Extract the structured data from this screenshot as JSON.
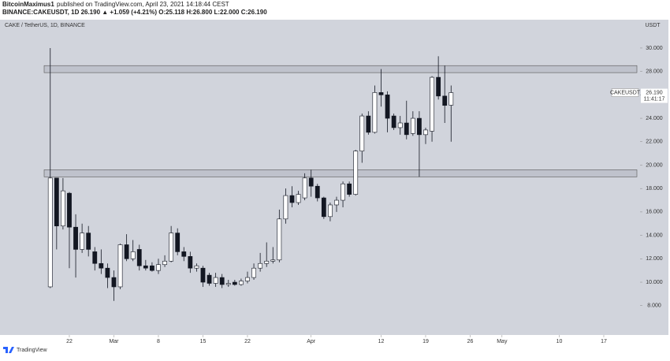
{
  "header": {
    "author": "BitcoinMaximus1",
    "published": "published on TradingView.com, April 23, 2021 14:18:44 CEST",
    "quote": "BINANCE:CAKEUSDT, 1D 26.190 ▲ +1.059 (+4.21%) O:25.118 H:26.800 L:22.000 C:26.190"
  },
  "footer": {
    "brand": "TradingView"
  },
  "chart_data": {
    "type": "candlestick",
    "title": "CAKE / TetherUS, 1D, BINANCE",
    "symbol_tag": "CAKEUSDT",
    "last_price_label": "26.190",
    "countdown": "11:41:17",
    "unit": "USDT",
    "x": [
      0,
      1,
      2,
      3,
      4,
      5,
      6,
      7,
      8,
      9,
      10,
      11,
      12,
      13,
      14,
      15,
      16,
      17,
      18,
      19,
      20,
      21,
      22,
      23,
      24,
      25,
      26,
      27,
      28,
      29,
      30,
      31,
      32,
      33,
      34,
      35,
      36,
      37,
      38,
      39,
      40,
      41,
      42,
      43,
      44,
      45,
      46,
      47,
      48,
      49,
      50,
      51,
      52,
      53,
      54,
      55,
      56,
      57,
      58,
      59,
      60,
      61,
      62,
      63
    ],
    "open": [
      9.6,
      18.9,
      14.8,
      17.6,
      14.7,
      12.8,
      14.2,
      12.6,
      11.6,
      11.2,
      10.4,
      9.6,
      13.2,
      12.0,
      12.8,
      11.4,
      11.4,
      11.0,
      11.5,
      11.8,
      14.2,
      12.6,
      12.2,
      11.2,
      11.2,
      10.6,
      9.9,
      10.4,
      9.8,
      10.0,
      9.8,
      10.1,
      10.4,
      11.2,
      11.6,
      11.8,
      11.9,
      15.4,
      17.4,
      16.8,
      17.2,
      18.9,
      18.2,
      17.2,
      15.6,
      16.6,
      17.0,
      18.4,
      17.5,
      21.2,
      24.2,
      22.8,
      26.2,
      26.0,
      24.2,
      23.2,
      23.6,
      22.7,
      24.0,
      22.6,
      22.9,
      27.5,
      25.9,
      25.118
    ],
    "high": [
      30.0,
      18.9,
      18.9,
      17.7,
      15.8,
      15.0,
      14.8,
      13.0,
      12.8,
      11.6,
      11.0,
      13.3,
      14.1,
      13.6,
      13.2,
      11.9,
      11.7,
      12.0,
      12.3,
      14.8,
      14.6,
      13.0,
      12.6,
      11.6,
      11.4,
      10.8,
      10.8,
      10.7,
      10.2,
      10.2,
      10.3,
      10.9,
      11.6,
      12.5,
      13.4,
      13.0,
      16.2,
      18.0,
      18.2,
      17.8,
      19.3,
      19.6,
      18.4,
      17.3,
      16.8,
      17.3,
      18.6,
      18.6,
      21.3,
      24.4,
      24.6,
      26.8,
      28.2,
      26.3,
      24.4,
      24.2,
      25.5,
      24.6,
      24.6,
      23.2,
      27.6,
      29.3,
      28.5,
      26.8
    ],
    "low": [
      9.5,
      12.8,
      14.5,
      11.2,
      10.4,
      12.5,
      12.2,
      11.0,
      10.7,
      9.5,
      8.4,
      9.4,
      11.8,
      11.8,
      11.0,
      11.0,
      10.9,
      10.7,
      11.3,
      11.7,
      12.3,
      11.8,
      10.8,
      10.9,
      9.6,
      9.7,
      9.6,
      9.5,
      9.6,
      9.7,
      9.7,
      9.9,
      10.2,
      10.9,
      11.3,
      11.6,
      11.7,
      15.0,
      16.4,
      16.6,
      17.0,
      17.3,
      16.9,
      15.4,
      15.2,
      16.0,
      16.4,
      17.3,
      17.4,
      20.2,
      22.6,
      22.7,
      25.0,
      22.8,
      23.0,
      22.6,
      22.2,
      22.5,
      19.0,
      21.8,
      22.0,
      25.6,
      23.6,
      22.0
    ],
    "close": [
      18.9,
      14.8,
      17.8,
      14.7,
      12.8,
      14.2,
      12.8,
      11.6,
      11.2,
      10.4,
      9.6,
      13.2,
      12.0,
      12.6,
      11.4,
      11.2,
      11.0,
      11.5,
      11.8,
      14.2,
      12.6,
      12.2,
      11.2,
      11.4,
      10.0,
      9.9,
      10.4,
      9.8,
      9.9,
      9.8,
      10.1,
      10.4,
      11.2,
      11.6,
      11.8,
      11.9,
      15.4,
      17.4,
      16.8,
      17.5,
      18.9,
      18.2,
      17.2,
      15.6,
      16.6,
      17.0,
      18.4,
      17.5,
      21.2,
      24.2,
      22.8,
      26.2,
      26.0,
      24.0,
      23.2,
      23.6,
      22.6,
      24.0,
      22.6,
      23.0,
      27.5,
      25.9,
      25.1,
      26.19
    ],
    "up_color": "#ffffff",
    "down_color": "#131722",
    "background": "#d1d4dc",
    "zones": [
      [
        27.9,
        28.5
      ],
      [
        19.0,
        19.6
      ]
    ],
    "xlim": [
      -7.9,
      92.7
    ],
    "xticks": [
      {
        "value": 3,
        "label": "22"
      },
      {
        "value": 10,
        "label": "Mar"
      },
      {
        "value": 17,
        "label": "8"
      },
      {
        "value": 24,
        "label": "15"
      },
      {
        "value": 31,
        "label": "22"
      },
      {
        "value": 41,
        "label": "Apr"
      },
      {
        "value": 52,
        "label": "12"
      },
      {
        "value": 59,
        "label": "19"
      },
      {
        "value": 66,
        "label": "26"
      },
      {
        "value": 71,
        "label": "May"
      },
      {
        "value": 80,
        "label": "10"
      },
      {
        "value": 87,
        "label": "17"
      }
    ],
    "ylim": [
      5.49,
      32.42
    ],
    "yticks": [
      {
        "value": 8,
        "label": "8.000"
      },
      {
        "value": 10,
        "label": "10.000"
      },
      {
        "value": 12,
        "label": "12.000"
      },
      {
        "value": 14,
        "label": "14.000"
      },
      {
        "value": 16,
        "label": "16.000"
      },
      {
        "value": 18,
        "label": "18.000"
      },
      {
        "value": 20,
        "label": "20.000"
      },
      {
        "value": 22,
        "label": "22.000"
      },
      {
        "value": 24,
        "label": "24.000"
      },
      {
        "value": 26,
        "label": "26.000"
      },
      {
        "value": 28,
        "label": "28.000"
      },
      {
        "value": 30,
        "label": "30.000"
      }
    ]
  }
}
